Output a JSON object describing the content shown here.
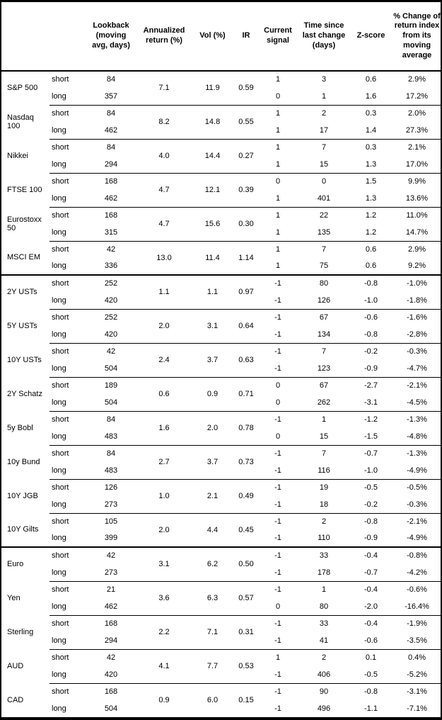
{
  "header": {
    "columns": [
      {
        "label": ""
      },
      {
        "label": ""
      },
      {
        "label": "Lookback (moving avg, days)"
      },
      {
        "label": "Annualized return (%)"
      },
      {
        "label": "Vol (%)"
      },
      {
        "label": "IR"
      },
      {
        "label": "Current signal"
      },
      {
        "label": "Time since last change (days)"
      },
      {
        "label": "Z-score"
      },
      {
        "label": "% Change of return index from its moving average"
      }
    ]
  },
  "assets": [
    {
      "name": "S&P 500",
      "section_start": false,
      "ann_return": "7.1",
      "vol": "11.9",
      "ir": "0.59",
      "rows": [
        {
          "horizon": "short",
          "lookback": "84",
          "signal": "1",
          "time_since": "3",
          "zscore": "0.6",
          "pct_change": "2.9%"
        },
        {
          "horizon": "long",
          "lookback": "357",
          "signal": "0",
          "time_since": "1",
          "zscore": "1.6",
          "pct_change": "17.2%"
        }
      ]
    },
    {
      "name": "Nasdaq 100",
      "section_start": false,
      "ann_return": "8.2",
      "vol": "14.8",
      "ir": "0.55",
      "rows": [
        {
          "horizon": "short",
          "lookback": "84",
          "signal": "1",
          "time_since": "2",
          "zscore": "0.3",
          "pct_change": "2.0%"
        },
        {
          "horizon": "long",
          "lookback": "462",
          "signal": "1",
          "time_since": "17",
          "zscore": "1.4",
          "pct_change": "27.3%"
        }
      ]
    },
    {
      "name": "Nikkei",
      "section_start": false,
      "ann_return": "4.0",
      "vol": "14.4",
      "ir": "0.27",
      "rows": [
        {
          "horizon": "short",
          "lookback": "84",
          "signal": "1",
          "time_since": "7",
          "zscore": "0.3",
          "pct_change": "2.1%"
        },
        {
          "horizon": "long",
          "lookback": "294",
          "signal": "1",
          "time_since": "15",
          "zscore": "1.3",
          "pct_change": "17.0%"
        }
      ]
    },
    {
      "name": "FTSE 100",
      "section_start": false,
      "ann_return": "4.7",
      "vol": "12.1",
      "ir": "0.39",
      "rows": [
        {
          "horizon": "short",
          "lookback": "168",
          "signal": "0",
          "time_since": "0",
          "zscore": "1.5",
          "pct_change": "9.9%"
        },
        {
          "horizon": "long",
          "lookback": "462",
          "signal": "1",
          "time_since": "401",
          "zscore": "1.3",
          "pct_change": "13.6%"
        }
      ]
    },
    {
      "name": "Eurostoxx 50",
      "section_start": false,
      "ann_return": "4.7",
      "vol": "15.6",
      "ir": "0.30",
      "rows": [
        {
          "horizon": "short",
          "lookback": "168",
          "signal": "1",
          "time_since": "22",
          "zscore": "1.2",
          "pct_change": "11.0%"
        },
        {
          "horizon": "long",
          "lookback": "315",
          "signal": "1",
          "time_since": "135",
          "zscore": "1.2",
          "pct_change": "14.7%"
        }
      ]
    },
    {
      "name": "MSCI EM",
      "section_start": false,
      "ann_return": "13.0",
      "vol": "11.4",
      "ir": "1.14",
      "rows": [
        {
          "horizon": "short",
          "lookback": "42",
          "signal": "1",
          "time_since": "7",
          "zscore": "0.6",
          "pct_change": "2.9%"
        },
        {
          "horizon": "long",
          "lookback": "336",
          "signal": "1",
          "time_since": "75",
          "zscore": "0.6",
          "pct_change": "9.2%"
        }
      ]
    },
    {
      "name": "2Y USTs",
      "section_start": true,
      "ann_return": "1.1",
      "vol": "1.1",
      "ir": "0.97",
      "rows": [
        {
          "horizon": "short",
          "lookback": "252",
          "signal": "-1",
          "time_since": "80",
          "zscore": "-0.8",
          "pct_change": "-1.0%"
        },
        {
          "horizon": "long",
          "lookback": "420",
          "signal": "-1",
          "time_since": "126",
          "zscore": "-1.0",
          "pct_change": "-1.8%"
        }
      ]
    },
    {
      "name": "5Y USTs",
      "section_start": false,
      "ann_return": "2.0",
      "vol": "3.1",
      "ir": "0.64",
      "rows": [
        {
          "horizon": "short",
          "lookback": "252",
          "signal": "-1",
          "time_since": "67",
          "zscore": "-0.6",
          "pct_change": "-1.6%"
        },
        {
          "horizon": "long",
          "lookback": "420",
          "signal": "-1",
          "time_since": "134",
          "zscore": "-0.8",
          "pct_change": "-2.8%"
        }
      ]
    },
    {
      "name": "10Y USTs",
      "section_start": false,
      "ann_return": "2.4",
      "vol": "3.7",
      "ir": "0.63",
      "rows": [
        {
          "horizon": "short",
          "lookback": "42",
          "signal": "-1",
          "time_since": "7",
          "zscore": "-0.2",
          "pct_change": "-0.3%"
        },
        {
          "horizon": "long",
          "lookback": "504",
          "signal": "-1",
          "time_since": "123",
          "zscore": "-0.9",
          "pct_change": "-4.7%"
        }
      ]
    },
    {
      "name": "2Y Schatz",
      "section_start": false,
      "ann_return": "0.6",
      "vol": "0.9",
      "ir": "0.71",
      "rows": [
        {
          "horizon": "short",
          "lookback": "189",
          "signal": "0",
          "time_since": "67",
          "zscore": "-2.7",
          "pct_change": "-2.1%"
        },
        {
          "horizon": "long",
          "lookback": "504",
          "signal": "0",
          "time_since": "262",
          "zscore": "-3.1",
          "pct_change": "-4.5%"
        }
      ]
    },
    {
      "name": "5y Bobl",
      "section_start": false,
      "ann_return": "1.6",
      "vol": "2.0",
      "ir": "0.78",
      "rows": [
        {
          "horizon": "short",
          "lookback": "84",
          "signal": "-1",
          "time_since": "1",
          "zscore": "-1.2",
          "pct_change": "-1.3%"
        },
        {
          "horizon": "long",
          "lookback": "483",
          "signal": "0",
          "time_since": "15",
          "zscore": "-1.5",
          "pct_change": "-4.8%"
        }
      ]
    },
    {
      "name": "10y Bund",
      "section_start": false,
      "ann_return": "2.7",
      "vol": "3.7",
      "ir": "0.73",
      "rows": [
        {
          "horizon": "short",
          "lookback": "84",
          "signal": "-1",
          "time_since": "7",
          "zscore": "-0.7",
          "pct_change": "-1.3%"
        },
        {
          "horizon": "long",
          "lookback": "483",
          "signal": "-1",
          "time_since": "116",
          "zscore": "-1.0",
          "pct_change": "-4.9%"
        }
      ]
    },
    {
      "name": "10Y JGB",
      "section_start": false,
      "ann_return": "1.0",
      "vol": "2.1",
      "ir": "0.49",
      "rows": [
        {
          "horizon": "short",
          "lookback": "126",
          "signal": "-1",
          "time_since": "19",
          "zscore": "-0.5",
          "pct_change": "-0.5%"
        },
        {
          "horizon": "long",
          "lookback": "273",
          "signal": "-1",
          "time_since": "18",
          "zscore": "-0.2",
          "pct_change": "-0.3%"
        }
      ]
    },
    {
      "name": "10Y Gilts",
      "section_start": false,
      "ann_return": "2.0",
      "vol": "4.4",
      "ir": "0.45",
      "rows": [
        {
          "horizon": "short",
          "lookback": "105",
          "signal": "-1",
          "time_since": "2",
          "zscore": "-0.8",
          "pct_change": "-2.1%"
        },
        {
          "horizon": "long",
          "lookback": "399",
          "signal": "-1",
          "time_since": "110",
          "zscore": "-0.9",
          "pct_change": "-4.9%"
        }
      ]
    },
    {
      "name": "Euro",
      "section_start": true,
      "ann_return": "3.1",
      "vol": "6.2",
      "ir": "0.50",
      "rows": [
        {
          "horizon": "short",
          "lookback": "42",
          "signal": "-1",
          "time_since": "33",
          "zscore": "-0.4",
          "pct_change": "-0.8%"
        },
        {
          "horizon": "long",
          "lookback": "273",
          "signal": "-1",
          "time_since": "178",
          "zscore": "-0.7",
          "pct_change": "-4.2%"
        }
      ]
    },
    {
      "name": "Yen",
      "section_start": false,
      "ann_return": "3.6",
      "vol": "6.3",
      "ir": "0.57",
      "rows": [
        {
          "horizon": "short",
          "lookback": "21",
          "signal": "-1",
          "time_since": "1",
          "zscore": "-0.4",
          "pct_change": "-0.6%"
        },
        {
          "horizon": "long",
          "lookback": "462",
          "signal": "0",
          "time_since": "80",
          "zscore": "-2.0",
          "pct_change": "-16.4%"
        }
      ]
    },
    {
      "name": "Sterling",
      "section_start": false,
      "ann_return": "2.2",
      "vol": "7.1",
      "ir": "0.31",
      "rows": [
        {
          "horizon": "short",
          "lookback": "168",
          "signal": "-1",
          "time_since": "33",
          "zscore": "-0.4",
          "pct_change": "-1.9%"
        },
        {
          "horizon": "long",
          "lookback": "294",
          "signal": "-1",
          "time_since": "41",
          "zscore": "-0.6",
          "pct_change": "-3.5%"
        }
      ]
    },
    {
      "name": "AUD",
      "section_start": false,
      "ann_return": "4.1",
      "vol": "7.7",
      "ir": "0.53",
      "rows": [
        {
          "horizon": "short",
          "lookback": "42",
          "signal": "1",
          "time_since": "2",
          "zscore": "0.1",
          "pct_change": "0.4%"
        },
        {
          "horizon": "long",
          "lookback": "420",
          "signal": "-1",
          "time_since": "406",
          "zscore": "-0.5",
          "pct_change": "-5.2%"
        }
      ]
    },
    {
      "name": "CAD",
      "section_start": false,
      "ann_return": "0.9",
      "vol": "6.0",
      "ir": "0.15",
      "rows": [
        {
          "horizon": "short",
          "lookback": "168",
          "signal": "-1",
          "time_since": "90",
          "zscore": "-0.8",
          "pct_change": "-3.1%"
        },
        {
          "horizon": "long",
          "lookback": "504",
          "signal": "-1",
          "time_since": "496",
          "zscore": "-1.1",
          "pct_change": "-7.1%"
        }
      ]
    }
  ]
}
